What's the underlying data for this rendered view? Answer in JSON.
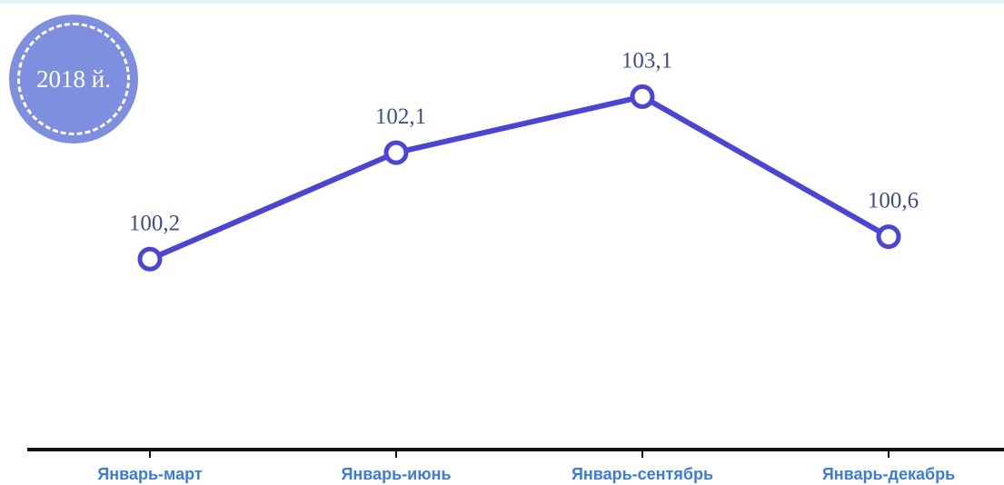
{
  "badge": {
    "label": "2018 й."
  },
  "chart_data": {
    "type": "line",
    "title": "",
    "xlabel": "",
    "ylabel": "",
    "categories": [
      "Январь-март",
      "Январь-июнь",
      "Январь-сентябрь",
      "Январь-декабрь"
    ],
    "series": [
      {
        "values": [
          100.2,
          102.1,
          103.1,
          100.6
        ]
      }
    ],
    "data_labels": [
      "100,2",
      "102,1",
      "103,1",
      "100,6"
    ],
    "ylim": [
      96.8,
      104.5
    ],
    "grid": false,
    "legend": "none",
    "colors": {
      "line": "#4a45d8",
      "marker_fill": "#ffffff",
      "axis": "#111111",
      "category_text": "#3a7be0",
      "value_text": "#3d4f8a",
      "badge": "#7f8fe0"
    }
  }
}
